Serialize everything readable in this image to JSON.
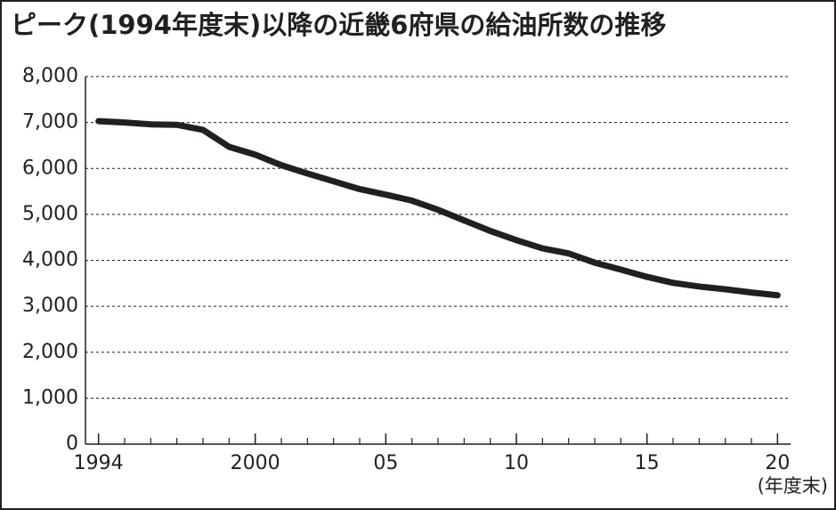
{
  "chart_data": {
    "type": "line",
    "title": "ピーク(1994年度末)以降の近畿6府県の給油所数の推移",
    "x_unit_label": "(年度末)",
    "x": [
      1994,
      1995,
      1996,
      1997,
      1998,
      1999,
      2000,
      2001,
      2002,
      2003,
      2004,
      2005,
      2006,
      2007,
      2008,
      2009,
      2010,
      2011,
      2012,
      2013,
      2014,
      2015,
      2016,
      2017,
      2018,
      2019,
      2020
    ],
    "series": [
      {
        "color": "#231f20",
        "values": [
          7030,
          7000,
          6960,
          6950,
          6840,
          6470,
          6300,
          6070,
          5890,
          5720,
          5550,
          5430,
          5300,
          5100,
          4870,
          4640,
          4440,
          4260,
          4150,
          3950,
          3800,
          3640,
          3510,
          3430,
          3370,
          3300,
          3240
        ]
      }
    ],
    "xlim": [
      1993.5,
      2020.5
    ],
    "xticks": [
      1994,
      2000,
      {
        "value": 2005,
        "label": "05"
      },
      {
        "value": 2010,
        "label": "10"
      },
      {
        "value": 2015,
        "label": "15"
      },
      {
        "value": 2020,
        "label": "20"
      }
    ],
    "ylim": [
      0,
      8000
    ],
    "yticks": [
      0,
      {
        "value": 1000,
        "label": "1,000"
      },
      {
        "value": 2000,
        "label": "2,000"
      },
      {
        "value": 3000,
        "label": "3,000"
      },
      {
        "value": 4000,
        "label": "4,000"
      },
      {
        "value": 5000,
        "label": "5,000"
      },
      {
        "value": 6000,
        "label": "6,000"
      },
      {
        "value": 7000,
        "label": "7,000"
      },
      {
        "value": 8000,
        "label": "8,000"
      }
    ],
    "grid": true
  }
}
